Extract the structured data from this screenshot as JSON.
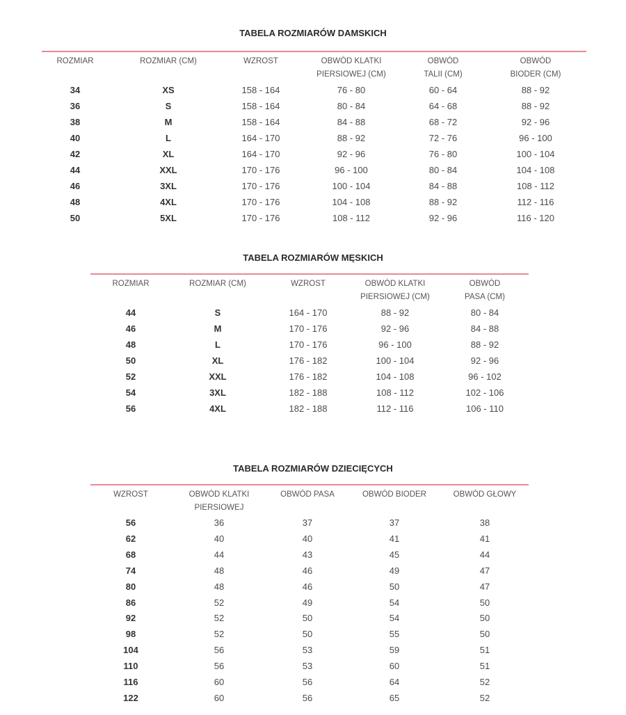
{
  "tables": [
    {
      "title": "TABELA ROZMIARÓW DAMSKICH",
      "headers": [
        "ROZMIAR",
        "ROZMIAR (CM)",
        "WZROST",
        "OBWÓD KLATKI\nPIERSIOWEJ (CM)",
        "OBWÓD\nTALII (CM)",
        "OBWÓD\nBIODER (CM)"
      ],
      "rows": [
        [
          "34",
          "XS",
          "158 - 164",
          "76 - 80",
          "60 - 64",
          "88 - 92"
        ],
        [
          "36",
          "S",
          "158 - 164",
          "80 - 84",
          "64 - 68",
          "88 - 92"
        ],
        [
          "38",
          "M",
          "158 - 164",
          "84 - 88",
          "68 - 72",
          "92 - 96"
        ],
        [
          "40",
          "L",
          "164 - 170",
          "88 - 92",
          "72 - 76",
          "96 - 100"
        ],
        [
          "42",
          "XL",
          "164 - 170",
          "92 - 96",
          "76 - 80",
          "100 - 104"
        ],
        [
          "44",
          "XXL",
          "170 - 176",
          "96 - 100",
          "80 - 84",
          "104 - 108"
        ],
        [
          "46",
          "3XL",
          "170 - 176",
          "100 - 104",
          "84 - 88",
          "108 - 112"
        ],
        [
          "48",
          "4XL",
          "170 - 176",
          "104 - 108",
          "88 - 92",
          "112 - 116"
        ],
        [
          "50",
          "5XL",
          "170 - 176",
          "108 - 112",
          "92 - 96",
          "116 - 120"
        ]
      ]
    },
    {
      "title": "TABELA ROZMIARÓW MĘSKICH",
      "headers": [
        "ROZMIAR",
        "ROZMIAR (CM)",
        "WZROST",
        "OBWÓD KLATKI\nPIERSIOWEJ (CM)",
        "OBWÓD\nPASA (CM)"
      ],
      "rows": [
        [
          "44",
          "S",
          "164 - 170",
          "88 - 92",
          "80 - 84"
        ],
        [
          "46",
          "M",
          "170 - 176",
          "92 - 96",
          "84 - 88"
        ],
        [
          "48",
          "L",
          "170 - 176",
          "96 - 100",
          "88 - 92"
        ],
        [
          "50",
          "XL",
          "176 - 182",
          "100 - 104",
          "92 - 96"
        ],
        [
          "52",
          "XXL",
          "176 - 182",
          "104 - 108",
          "96 - 102"
        ],
        [
          "54",
          "3XL",
          "182 - 188",
          "108 - 112",
          "102 - 106"
        ],
        [
          "56",
          "4XL",
          "182 - 188",
          "112 - 116",
          "106 - 110"
        ]
      ]
    },
    {
      "title": "TABELA ROZMIARÓW DZIECIĘCYCH",
      "headers": [
        "WZROST",
        "OBWÓD KLATKI\nPIERSIOWEJ",
        "OBWÓD PASA",
        "OBWÓD BIODER",
        "OBWÓD GŁOWY"
      ],
      "rows": [
        [
          "56",
          "36",
          "37",
          "37",
          "38"
        ],
        [
          "62",
          "40",
          "40",
          "41",
          "41"
        ],
        [
          "68",
          "44",
          "43",
          "45",
          "44"
        ],
        [
          "74",
          "48",
          "46",
          "49",
          "47"
        ],
        [
          "80",
          "48",
          "46",
          "50",
          "47"
        ],
        [
          "86",
          "52",
          "49",
          "54",
          "50"
        ],
        [
          "92",
          "52",
          "50",
          "54",
          "50"
        ],
        [
          "98",
          "52",
          "50",
          "55",
          "50"
        ],
        [
          "104",
          "56",
          "53",
          "59",
          "51"
        ],
        [
          "110",
          "56",
          "53",
          "60",
          "51"
        ],
        [
          "116",
          "60",
          "56",
          "64",
          "52"
        ],
        [
          "122",
          "60",
          "56",
          "65",
          "52"
        ]
      ]
    }
  ],
  "colors": {
    "rule": "#e58a93",
    "title": "#2a2a2a",
    "text": "#4a4a4a"
  }
}
